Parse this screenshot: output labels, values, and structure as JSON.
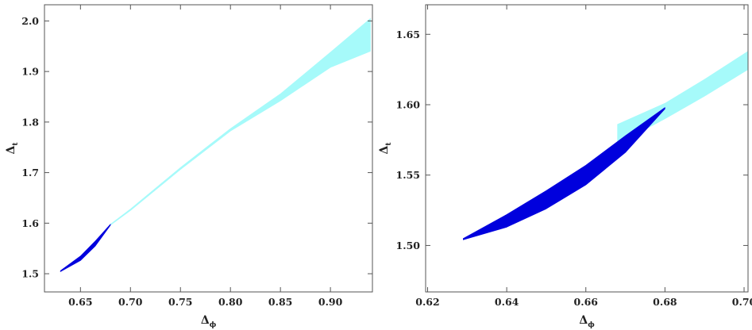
{
  "chart_data": [
    {
      "type": "area",
      "xlabel": "Δ",
      "xlabel_sub": "ϕ",
      "ylabel": "Δ",
      "ylabel_sub": "t",
      "xlim": [
        0.614,
        0.942
      ],
      "ylim": [
        1.464,
        2.032
      ],
      "xticks": [
        0.65,
        0.7,
        0.75,
        0.8,
        0.85,
        0.9
      ],
      "xtick_labels": [
        "0.65",
        "0.70",
        "0.75",
        "0.80",
        "0.85",
        "0.90"
      ],
      "yticks": [
        1.5,
        1.6,
        1.7,
        1.8,
        1.9,
        2.0
      ],
      "ytick_labels": [
        "1.5",
        "1.6",
        "1.7",
        "1.8",
        "1.9",
        "2.0"
      ],
      "grid": false,
      "series": [
        {
          "color": "#a6fafa",
          "upper": [
            [
              0.68,
              1.598
            ],
            [
              0.7,
              1.628
            ],
            [
              0.75,
              1.71
            ],
            [
              0.8,
              1.787
            ],
            [
              0.85,
              1.856
            ],
            [
              0.9,
              1.938
            ],
            [
              0.94,
              2.005
            ]
          ],
          "lower": [
            [
              0.68,
              1.596
            ],
            [
              0.7,
              1.625
            ],
            [
              0.75,
              1.706
            ],
            [
              0.8,
              1.782
            ],
            [
              0.85,
              1.842
            ],
            [
              0.9,
              1.908
            ],
            [
              0.94,
              1.94
            ]
          ]
        },
        {
          "color": "#0000dd",
          "upper": [
            [
              0.63,
              1.506
            ],
            [
              0.65,
              1.535
            ],
            [
              0.665,
              1.565
            ],
            [
              0.68,
              1.598
            ]
          ],
          "lower": [
            [
              0.63,
              1.504
            ],
            [
              0.65,
              1.526
            ],
            [
              0.665,
              1.555
            ],
            [
              0.68,
              1.596
            ]
          ]
        }
      ]
    },
    {
      "type": "area",
      "xlabel": "Δ",
      "xlabel_sub": "ϕ",
      "ylabel": "Δ",
      "ylabel_sub": "t",
      "xlim": [
        0.6195,
        0.701
      ],
      "ylim": [
        1.467,
        1.671
      ],
      "xticks": [
        0.62,
        0.64,
        0.66,
        0.68,
        0.7
      ],
      "xtick_labels": [
        "0.62",
        "0.64",
        "0.66",
        "0.68",
        "0.70"
      ],
      "yticks": [
        1.5,
        1.55,
        1.6,
        1.65
      ],
      "ytick_labels": [
        "1.50",
        "1.55",
        "1.60",
        "1.65"
      ],
      "grid": false,
      "series": [
        {
          "color": "#a6fafa",
          "upper": [
            [
              0.668,
              1.586
            ],
            [
              0.68,
              1.601
            ],
            [
              0.69,
              1.618
            ],
            [
              0.701,
              1.638
            ]
          ],
          "lower": [
            [
              0.668,
              1.572
            ],
            [
              0.68,
              1.59
            ],
            [
              0.69,
              1.606
            ],
            [
              0.701,
              1.625
            ]
          ]
        },
        {
          "color": "#0000dd",
          "upper": [
            [
              0.629,
              1.505
            ],
            [
              0.64,
              1.522
            ],
            [
              0.65,
              1.539
            ],
            [
              0.66,
              1.557
            ],
            [
              0.67,
              1.578
            ],
            [
              0.68,
              1.598
            ]
          ],
          "lower": [
            [
              0.629,
              1.504
            ],
            [
              0.64,
              1.513
            ],
            [
              0.65,
              1.526
            ],
            [
              0.66,
              1.543
            ],
            [
              0.67,
              1.566
            ],
            [
              0.68,
              1.597
            ]
          ]
        }
      ]
    }
  ]
}
